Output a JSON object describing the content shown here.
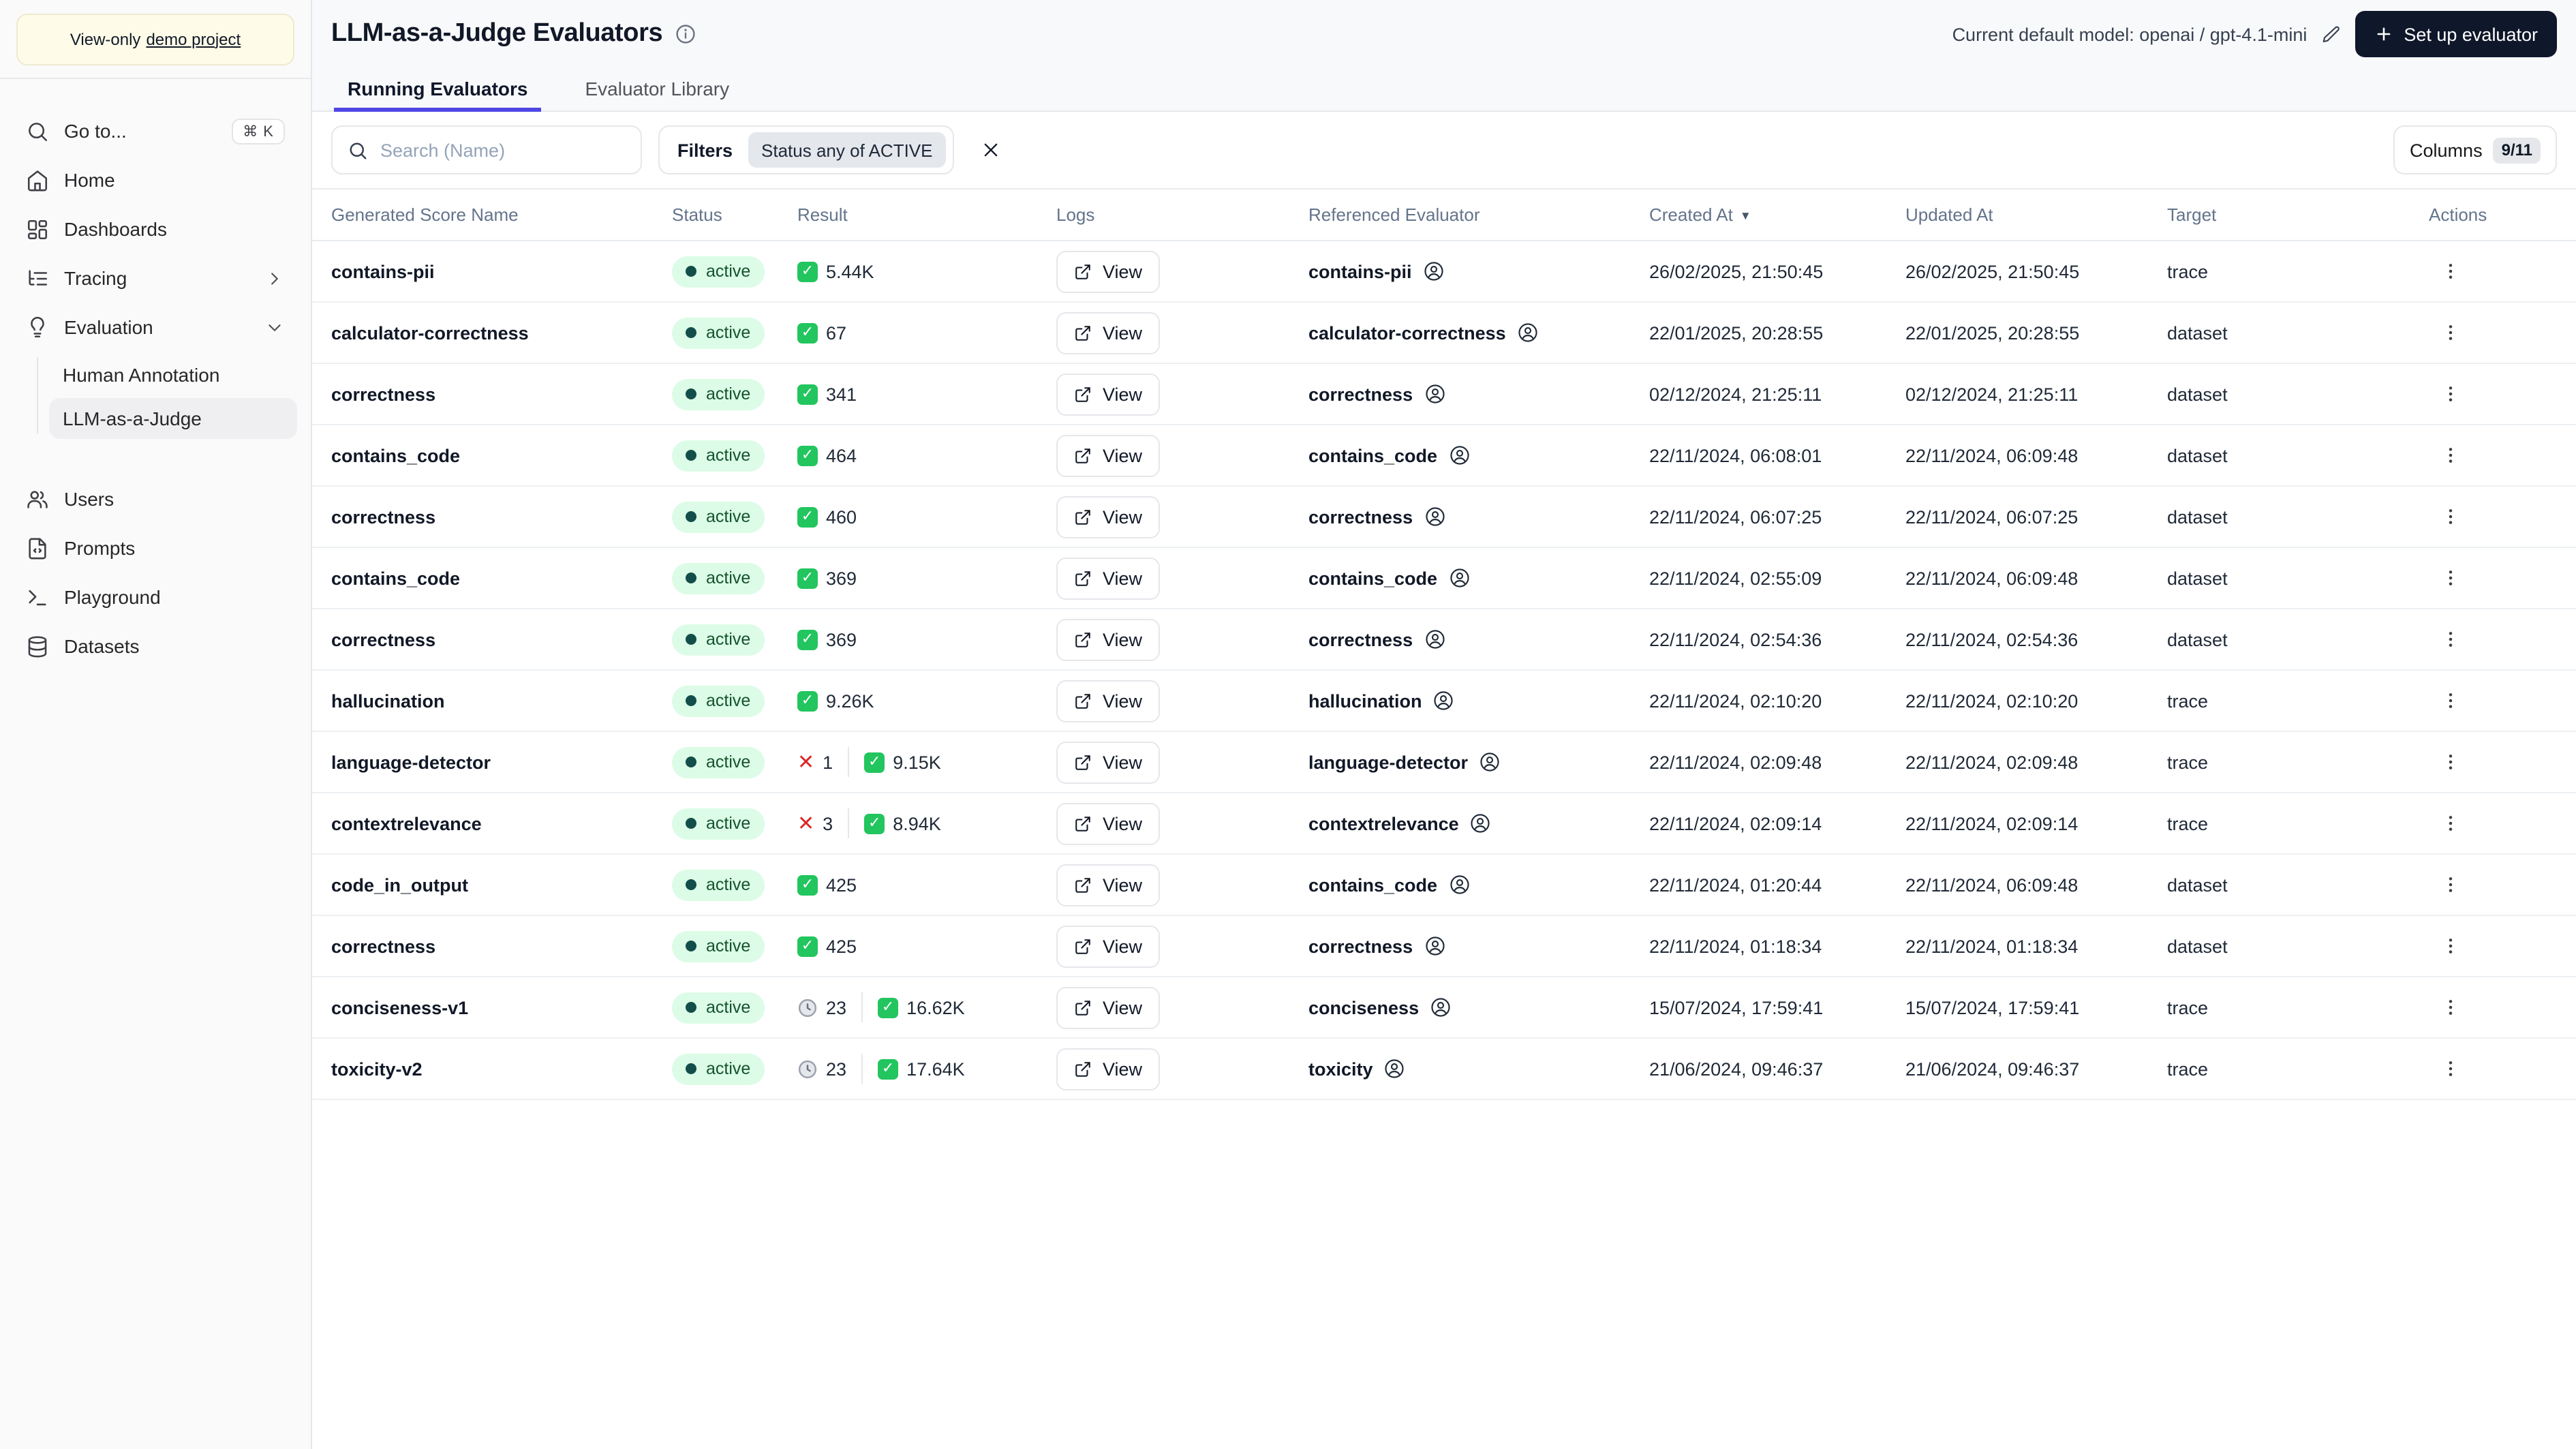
{
  "colors": {
    "accent_indigo": "#4f46e5",
    "setup_button_bg": "#0f172a",
    "badge_bg": "#dcfce7",
    "badge_dot": "#134e4a",
    "check_green": "#22c55e",
    "cross_red": "#dc2626",
    "banner_bg": "#fefce8"
  },
  "sidebar": {
    "banner": {
      "prefix": "View-only",
      "link": "demo project"
    },
    "shortcut": "⌘ K",
    "items": [
      {
        "label": "Go to..."
      },
      {
        "label": "Home"
      },
      {
        "label": "Dashboards"
      },
      {
        "label": "Tracing"
      },
      {
        "label": "Evaluation"
      },
      {
        "label": "Human Annotation"
      },
      {
        "label": "LLM-as-a-Judge"
      },
      {
        "label": "Users"
      },
      {
        "label": "Prompts"
      },
      {
        "label": "Playground"
      },
      {
        "label": "Datasets"
      }
    ]
  },
  "header": {
    "title": "LLM-as-a-Judge Evaluators",
    "model_label": "Current default model: openai / gpt-4.1-mini",
    "setup_button": "Set up evaluator"
  },
  "tabs": [
    {
      "label": "Running Evaluators",
      "active": true
    },
    {
      "label": "Evaluator Library",
      "active": false
    }
  ],
  "toolbar": {
    "search_placeholder": "Search (Name)",
    "filters_label": "Filters",
    "filter_chip": "Status any of ACTIVE",
    "columns_label": "Columns",
    "columns_count": "9/11"
  },
  "table": {
    "columns": [
      "Generated Score Name",
      "Status",
      "Result",
      "Logs",
      "Referenced Evaluator",
      "Created At",
      "Updated At",
      "Target",
      "Actions"
    ],
    "sort_column": "Created At",
    "sort_indicator": "▼",
    "rows": [
      {
        "name": "contains-pii",
        "status": "active",
        "results": [
          {
            "icon": "check",
            "count": "5.44K"
          }
        ],
        "logs": "View",
        "referenced": "contains-pii",
        "created": "26/02/2025, 21:50:45",
        "updated": "26/02/2025, 21:50:45",
        "target": "trace"
      },
      {
        "name": "calculator-correctness",
        "status": "active",
        "results": [
          {
            "icon": "check",
            "count": "67"
          }
        ],
        "logs": "View",
        "referenced": "calculator-correctness",
        "created": "22/01/2025, 20:28:55",
        "updated": "22/01/2025, 20:28:55",
        "target": "dataset"
      },
      {
        "name": "correctness",
        "status": "active",
        "results": [
          {
            "icon": "check",
            "count": "341"
          }
        ],
        "logs": "View",
        "referenced": "correctness",
        "created": "02/12/2024, 21:25:11",
        "updated": "02/12/2024, 21:25:11",
        "target": "dataset"
      },
      {
        "name": "contains_code",
        "status": "active",
        "results": [
          {
            "icon": "check",
            "count": "464"
          }
        ],
        "logs": "View",
        "referenced": "contains_code",
        "created": "22/11/2024, 06:08:01",
        "updated": "22/11/2024, 06:09:48",
        "target": "dataset"
      },
      {
        "name": "correctness",
        "status": "active",
        "results": [
          {
            "icon": "check",
            "count": "460"
          }
        ],
        "logs": "View",
        "referenced": "correctness",
        "created": "22/11/2024, 06:07:25",
        "updated": "22/11/2024, 06:07:25",
        "target": "dataset"
      },
      {
        "name": "contains_code",
        "status": "active",
        "results": [
          {
            "icon": "check",
            "count": "369"
          }
        ],
        "logs": "View",
        "referenced": "contains_code",
        "created": "22/11/2024, 02:55:09",
        "updated": "22/11/2024, 06:09:48",
        "target": "dataset"
      },
      {
        "name": "correctness",
        "status": "active",
        "results": [
          {
            "icon": "check",
            "count": "369"
          }
        ],
        "logs": "View",
        "referenced": "correctness",
        "created": "22/11/2024, 02:54:36",
        "updated": "22/11/2024, 02:54:36",
        "target": "dataset"
      },
      {
        "name": "hallucination",
        "status": "active",
        "results": [
          {
            "icon": "check",
            "count": "9.26K"
          }
        ],
        "logs": "View",
        "referenced": "hallucination",
        "created": "22/11/2024, 02:10:20",
        "updated": "22/11/2024, 02:10:20",
        "target": "trace"
      },
      {
        "name": "language-detector",
        "status": "active",
        "results": [
          {
            "icon": "cross",
            "count": "1"
          },
          {
            "icon": "check",
            "count": "9.15K"
          }
        ],
        "logs": "View",
        "referenced": "language-detector",
        "created": "22/11/2024, 02:09:48",
        "updated": "22/11/2024, 02:09:48",
        "target": "trace"
      },
      {
        "name": "contextrelevance",
        "status": "active",
        "results": [
          {
            "icon": "cross",
            "count": "3"
          },
          {
            "icon": "check",
            "count": "8.94K"
          }
        ],
        "logs": "View",
        "referenced": "contextrelevance",
        "created": "22/11/2024, 02:09:14",
        "updated": "22/11/2024, 02:09:14",
        "target": "trace"
      },
      {
        "name": "code_in_output",
        "status": "active",
        "results": [
          {
            "icon": "check",
            "count": "425"
          }
        ],
        "logs": "View",
        "referenced": "contains_code",
        "created": "22/11/2024, 01:20:44",
        "updated": "22/11/2024, 06:09:48",
        "target": "dataset"
      },
      {
        "name": "correctness",
        "status": "active",
        "results": [
          {
            "icon": "check",
            "count": "425"
          }
        ],
        "logs": "View",
        "referenced": "correctness",
        "created": "22/11/2024, 01:18:34",
        "updated": "22/11/2024, 01:18:34",
        "target": "dataset"
      },
      {
        "name": "conciseness-v1",
        "status": "active",
        "results": [
          {
            "icon": "clock",
            "count": "23"
          },
          {
            "icon": "check",
            "count": "16.62K"
          }
        ],
        "logs": "View",
        "referenced": "conciseness",
        "created": "15/07/2024, 17:59:41",
        "updated": "15/07/2024, 17:59:41",
        "target": "trace"
      },
      {
        "name": "toxicity-v2",
        "status": "active",
        "results": [
          {
            "icon": "clock",
            "count": "23"
          },
          {
            "icon": "check",
            "count": "17.64K"
          }
        ],
        "logs": "View",
        "referenced": "toxicity",
        "created": "21/06/2024, 09:46:37",
        "updated": "21/06/2024, 09:46:37",
        "target": "trace"
      }
    ]
  }
}
